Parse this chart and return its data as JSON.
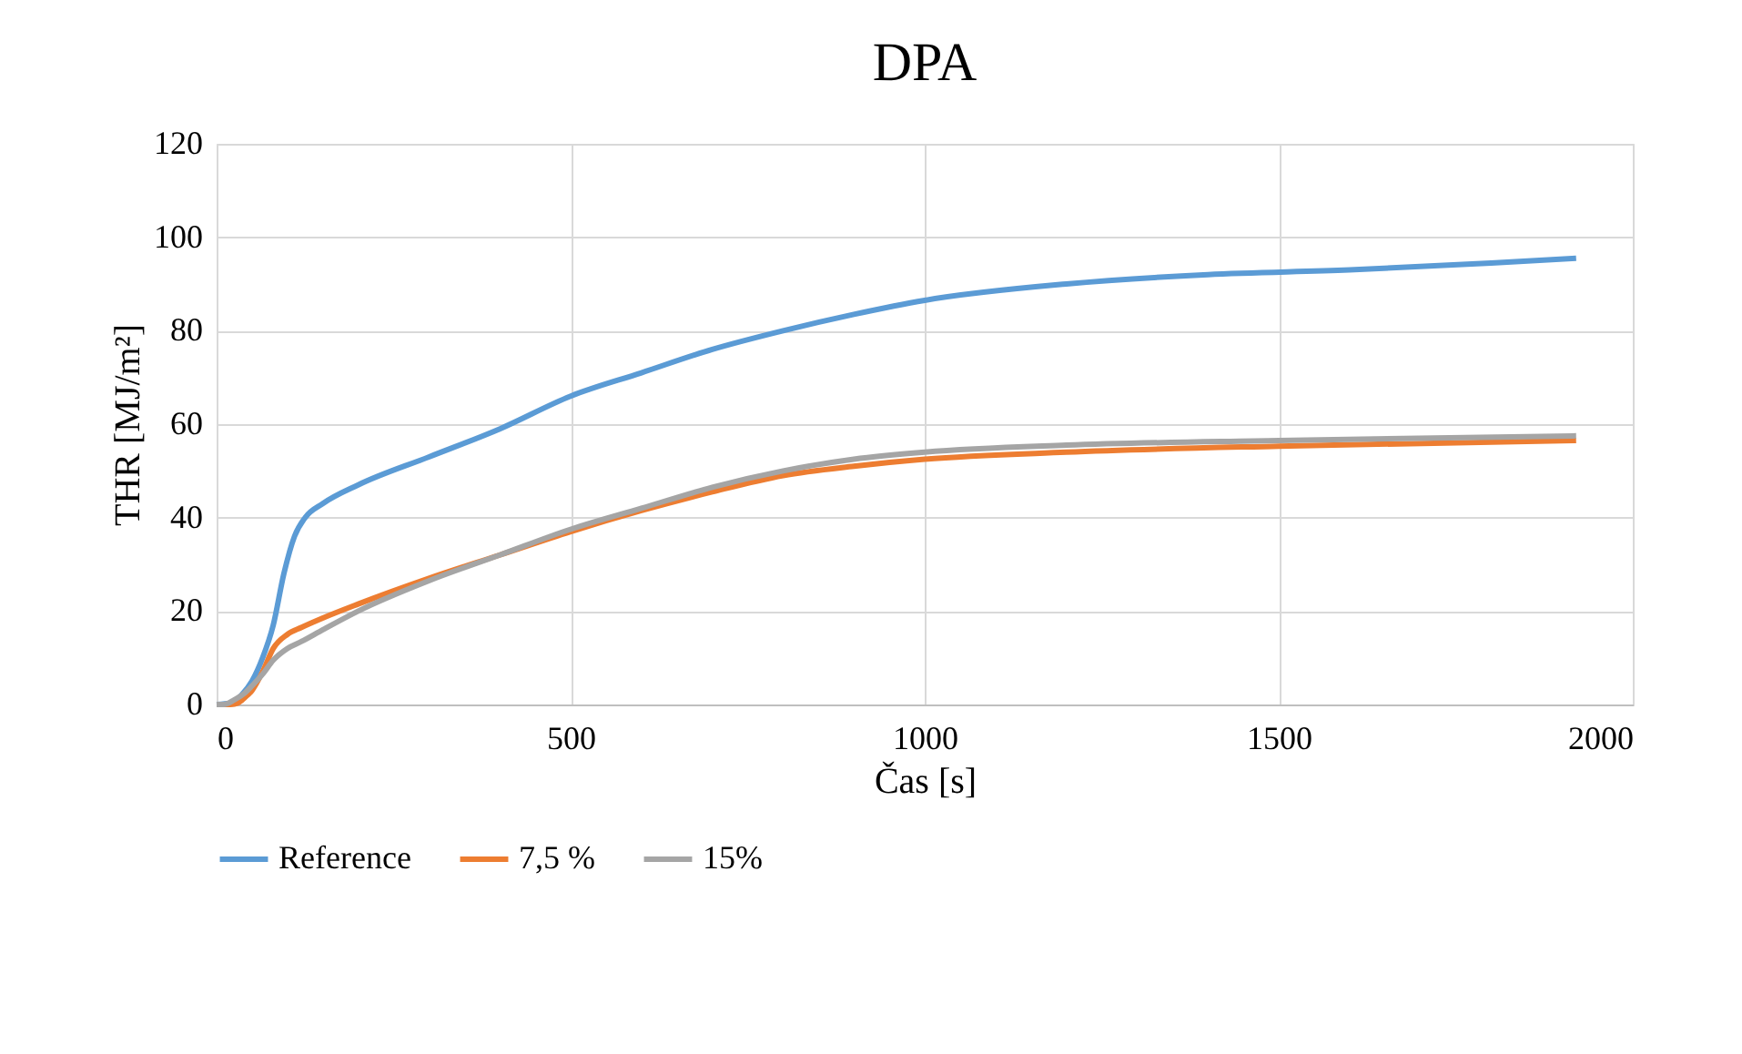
{
  "chart_data": {
    "type": "line",
    "title": "DPA",
    "xlabel": "Čas [s]",
    "ylabel": "THR [MJ/m²]",
    "xlim": [
      0,
      2000
    ],
    "xticks": [
      0,
      500,
      1000,
      1500,
      2000
    ],
    "ylim": [
      0,
      120
    ],
    "yticks": [
      0,
      20,
      40,
      60,
      80,
      100,
      120
    ],
    "grid": true,
    "legend": "bottom",
    "marker": "none",
    "line_style": "solid",
    "series": [
      {
        "name": "Reference",
        "color": "#5b9bd5",
        "x": [
          0,
          20,
          35,
          50,
          65,
          80,
          95,
          110,
          125,
          150,
          200,
          300,
          400,
          500,
          600,
          700,
          800,
          900,
          1000,
          1200,
          1400,
          1600,
          1800,
          1920
        ],
        "values": [
          0,
          0.3,
          2,
          5,
          10,
          17,
          28,
          36,
          40,
          43,
          47,
          53,
          59,
          66,
          71,
          76,
          80,
          83.5,
          86.5,
          90,
          92,
          93,
          94.5,
          95.5
        ]
      },
      {
        "name": "7,5 %",
        "color": "#ed7d31",
        "x": [
          0,
          20,
          30,
          40,
          50,
          65,
          80,
          100,
          120,
          150,
          200,
          300,
          400,
          500,
          600,
          700,
          800,
          900,
          1000,
          1200,
          1500,
          1920
        ],
        "values": [
          0,
          0,
          0.3,
          1.5,
          3,
          7,
          12,
          15,
          16.5,
          18.5,
          21.5,
          27,
          32,
          37,
          41.5,
          45.5,
          49,
          51,
          52.5,
          54,
          55.3,
          56.5
        ]
      },
      {
        "name": "15%",
        "color": "#a5a5a5",
        "x": [
          0,
          10,
          25,
          40,
          50,
          65,
          80,
          100,
          120,
          150,
          200,
          300,
          400,
          500,
          600,
          700,
          800,
          900,
          1000,
          1200,
          1500,
          1920
        ],
        "values": [
          0,
          0,
          1,
          2.5,
          4,
          6.5,
          9.5,
          12,
          13.5,
          16,
          20,
          26.5,
          32,
          37.5,
          42,
          46.5,
          50,
          52.5,
          54,
          55.5,
          56.5,
          57.5
        ]
      }
    ]
  }
}
